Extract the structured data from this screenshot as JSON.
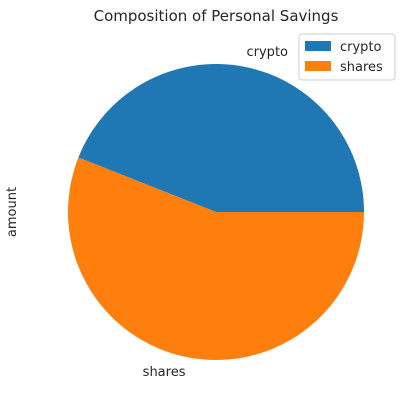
{
  "chart_data": {
    "type": "pie",
    "title": "Composition of Personal Savings",
    "ylabel": "amount",
    "categories": [
      "crypto",
      "shares"
    ],
    "values": [
      44,
      56
    ],
    "colors": [
      "#1f77b4",
      "#ff7f0e"
    ],
    "legend": {
      "placement": "top-right",
      "entries": [
        "crypto",
        "shares"
      ]
    },
    "start_angle_deg": 0,
    "direction": "counterclockwise"
  }
}
